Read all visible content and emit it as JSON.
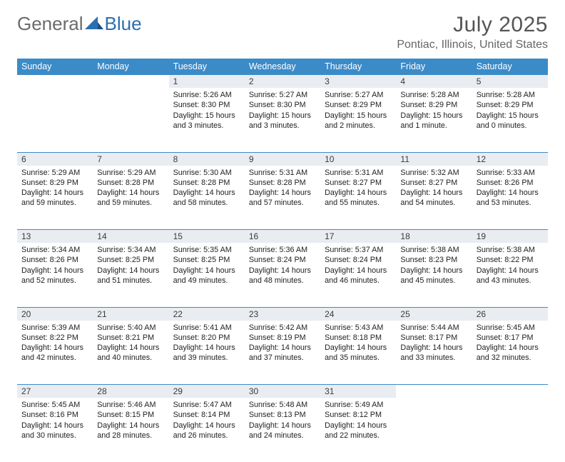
{
  "brand": {
    "name_left": "General",
    "name_right": "Blue"
  },
  "colors": {
    "header_bg": "#3b8bc9",
    "header_text": "#ffffff",
    "daynum_bg": "#e9edf1",
    "divider": "#3b8bc9",
    "logo_gray": "#6b6b6b",
    "logo_blue": "#2b6fb0",
    "title_color": "#555555",
    "location_color": "#666666",
    "body_text": "#222222",
    "background": "#ffffff"
  },
  "title": "July 2025",
  "location": "Pontiac, Illinois, United States",
  "weekdays": [
    "Sunday",
    "Monday",
    "Tuesday",
    "Wednesday",
    "Thursday",
    "Friday",
    "Saturday"
  ],
  "weeks": [
    [
      null,
      null,
      {
        "n": "1",
        "sr": "5:26 AM",
        "ss": "8:30 PM",
        "dl": "15 hours and 3 minutes."
      },
      {
        "n": "2",
        "sr": "5:27 AM",
        "ss": "8:30 PM",
        "dl": "15 hours and 3 minutes."
      },
      {
        "n": "3",
        "sr": "5:27 AM",
        "ss": "8:29 PM",
        "dl": "15 hours and 2 minutes."
      },
      {
        "n": "4",
        "sr": "5:28 AM",
        "ss": "8:29 PM",
        "dl": "15 hours and 1 minute."
      },
      {
        "n": "5",
        "sr": "5:28 AM",
        "ss": "8:29 PM",
        "dl": "15 hours and 0 minutes."
      }
    ],
    [
      {
        "n": "6",
        "sr": "5:29 AM",
        "ss": "8:29 PM",
        "dl": "14 hours and 59 minutes."
      },
      {
        "n": "7",
        "sr": "5:29 AM",
        "ss": "8:28 PM",
        "dl": "14 hours and 59 minutes."
      },
      {
        "n": "8",
        "sr": "5:30 AM",
        "ss": "8:28 PM",
        "dl": "14 hours and 58 minutes."
      },
      {
        "n": "9",
        "sr": "5:31 AM",
        "ss": "8:28 PM",
        "dl": "14 hours and 57 minutes."
      },
      {
        "n": "10",
        "sr": "5:31 AM",
        "ss": "8:27 PM",
        "dl": "14 hours and 55 minutes."
      },
      {
        "n": "11",
        "sr": "5:32 AM",
        "ss": "8:27 PM",
        "dl": "14 hours and 54 minutes."
      },
      {
        "n": "12",
        "sr": "5:33 AM",
        "ss": "8:26 PM",
        "dl": "14 hours and 53 minutes."
      }
    ],
    [
      {
        "n": "13",
        "sr": "5:34 AM",
        "ss": "8:26 PM",
        "dl": "14 hours and 52 minutes."
      },
      {
        "n": "14",
        "sr": "5:34 AM",
        "ss": "8:25 PM",
        "dl": "14 hours and 51 minutes."
      },
      {
        "n": "15",
        "sr": "5:35 AM",
        "ss": "8:25 PM",
        "dl": "14 hours and 49 minutes."
      },
      {
        "n": "16",
        "sr": "5:36 AM",
        "ss": "8:24 PM",
        "dl": "14 hours and 48 minutes."
      },
      {
        "n": "17",
        "sr": "5:37 AM",
        "ss": "8:24 PM",
        "dl": "14 hours and 46 minutes."
      },
      {
        "n": "18",
        "sr": "5:38 AM",
        "ss": "8:23 PM",
        "dl": "14 hours and 45 minutes."
      },
      {
        "n": "19",
        "sr": "5:38 AM",
        "ss": "8:22 PM",
        "dl": "14 hours and 43 minutes."
      }
    ],
    [
      {
        "n": "20",
        "sr": "5:39 AM",
        "ss": "8:22 PM",
        "dl": "14 hours and 42 minutes."
      },
      {
        "n": "21",
        "sr": "5:40 AM",
        "ss": "8:21 PM",
        "dl": "14 hours and 40 minutes."
      },
      {
        "n": "22",
        "sr": "5:41 AM",
        "ss": "8:20 PM",
        "dl": "14 hours and 39 minutes."
      },
      {
        "n": "23",
        "sr": "5:42 AM",
        "ss": "8:19 PM",
        "dl": "14 hours and 37 minutes."
      },
      {
        "n": "24",
        "sr": "5:43 AM",
        "ss": "8:18 PM",
        "dl": "14 hours and 35 minutes."
      },
      {
        "n": "25",
        "sr": "5:44 AM",
        "ss": "8:17 PM",
        "dl": "14 hours and 33 minutes."
      },
      {
        "n": "26",
        "sr": "5:45 AM",
        "ss": "8:17 PM",
        "dl": "14 hours and 32 minutes."
      }
    ],
    [
      {
        "n": "27",
        "sr": "5:45 AM",
        "ss": "8:16 PM",
        "dl": "14 hours and 30 minutes."
      },
      {
        "n": "28",
        "sr": "5:46 AM",
        "ss": "8:15 PM",
        "dl": "14 hours and 28 minutes."
      },
      {
        "n": "29",
        "sr": "5:47 AM",
        "ss": "8:14 PM",
        "dl": "14 hours and 26 minutes."
      },
      {
        "n": "30",
        "sr": "5:48 AM",
        "ss": "8:13 PM",
        "dl": "14 hours and 24 minutes."
      },
      {
        "n": "31",
        "sr": "5:49 AM",
        "ss": "8:12 PM",
        "dl": "14 hours and 22 minutes."
      },
      null,
      null
    ]
  ],
  "labels": {
    "sunrise": "Sunrise: ",
    "sunset": "Sunset: ",
    "daylight": "Daylight: "
  }
}
